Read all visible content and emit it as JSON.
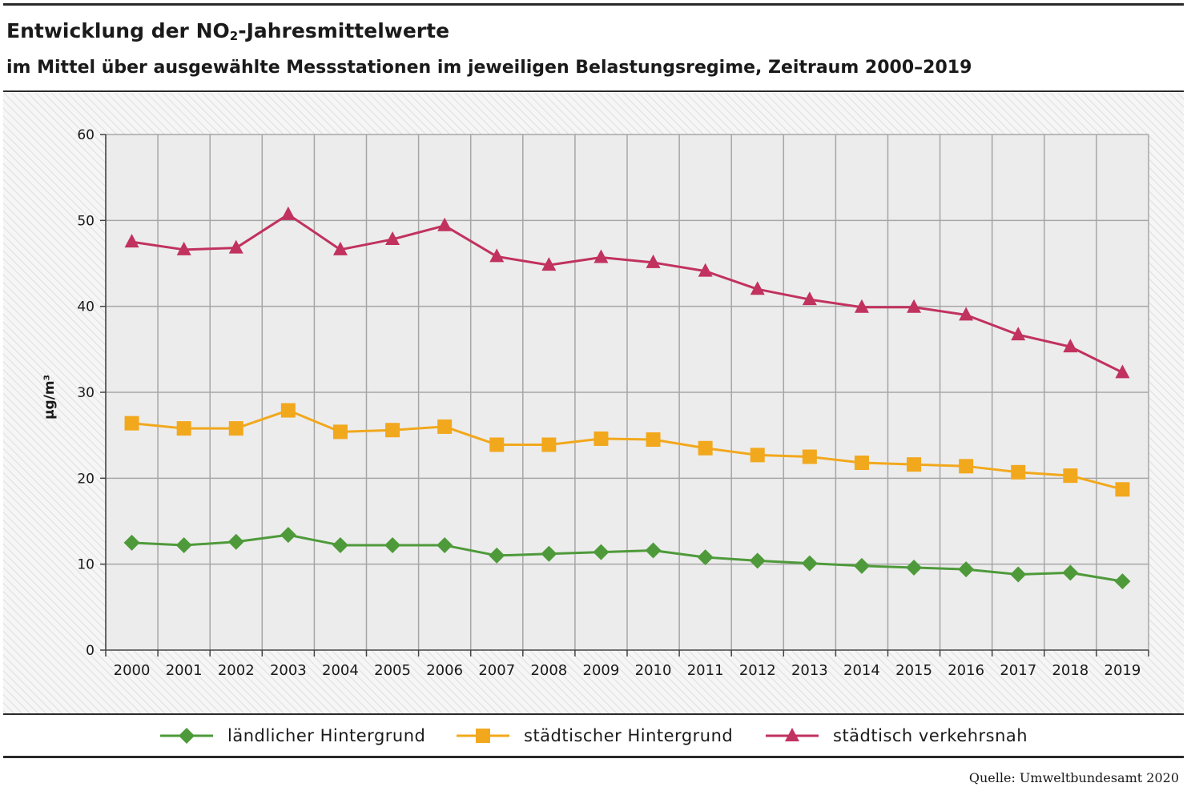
{
  "header": {
    "title_main": "Entwicklung der NO",
    "title_sub": "2",
    "title_rest": "-Jahresmittelwerte",
    "subtitle": "im Mittel über ausgewählte Messstationen im jeweiligen Belastungsregime, Zeitraum 2000–2019"
  },
  "chart_data": {
    "type": "line",
    "ylabel": "µg/m³",
    "ylim": [
      0,
      60
    ],
    "yticks": [
      0,
      10,
      20,
      30,
      40,
      50,
      60
    ],
    "categories": [
      "2000",
      "2001",
      "2002",
      "2003",
      "2004",
      "2005",
      "2006",
      "2007",
      "2008",
      "2009",
      "2010",
      "2011",
      "2012",
      "2013",
      "2014",
      "2015",
      "2016",
      "2017",
      "2018",
      "2019"
    ],
    "grid": true,
    "legend_position": "bottom",
    "series": [
      {
        "name": "ländlicher Hintergrund",
        "color": "#4e9a3a",
        "marker": "diamond",
        "values": [
          12.5,
          12.2,
          12.6,
          13.4,
          12.2,
          12.2,
          12.2,
          11.0,
          11.2,
          11.4,
          11.6,
          10.8,
          10.4,
          10.1,
          9.8,
          9.6,
          9.4,
          8.8,
          9.0,
          8.0
        ]
      },
      {
        "name": "städtischer Hintergrund",
        "color": "#f2a81d",
        "marker": "square",
        "values": [
          26.4,
          25.8,
          25.8,
          27.9,
          25.4,
          25.6,
          26.0,
          23.9,
          23.9,
          24.6,
          24.5,
          23.5,
          22.7,
          22.5,
          21.8,
          21.6,
          21.4,
          20.7,
          20.3,
          18.7
        ]
      },
      {
        "name": "städtisch verkehrsnah",
        "color": "#c1325f",
        "marker": "triangle",
        "values": [
          47.5,
          46.6,
          46.8,
          50.7,
          46.6,
          47.8,
          49.4,
          45.8,
          44.8,
          45.7,
          45.1,
          44.1,
          42.0,
          40.8,
          39.9,
          39.9,
          39.0,
          36.7,
          35.3,
          32.3
        ]
      }
    ]
  },
  "source": "Quelle: Umweltbundesamt 2020"
}
